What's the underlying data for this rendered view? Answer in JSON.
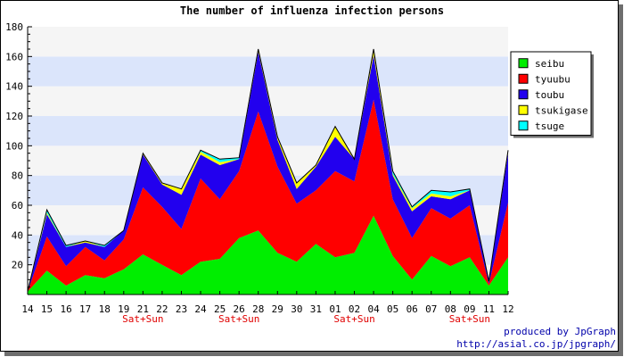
{
  "chart_data": {
    "type": "area",
    "stacked": true,
    "title": "The number of influenza infection persons",
    "categories": [
      "14",
      "15",
      "16",
      "17",
      "18",
      "19",
      "21",
      "22",
      "23",
      "24",
      "25",
      "26",
      "28",
      "29",
      "30",
      "31",
      "01",
      "02",
      "04",
      "05",
      "06",
      "07",
      "08",
      "09",
      "11",
      "12"
    ],
    "weekend_labels": [
      {
        "category": "21",
        "text": "Sat+Sun"
      },
      {
        "category": "26",
        "text": "Sat+Sun"
      },
      {
        "category": "02",
        "text": "Sat+Sun"
      },
      {
        "category": "09",
        "text": "Sat+Sun"
      }
    ],
    "ylim": [
      0,
      180
    ],
    "yticks": [
      20,
      40,
      60,
      80,
      100,
      120,
      140,
      160,
      180
    ],
    "legend_position": "right",
    "series": [
      {
        "name": "seibu",
        "color": "#00ee00",
        "values": [
          2,
          16,
          6,
          13,
          11,
          17,
          27,
          20,
          13,
          22,
          24,
          38,
          43,
          28,
          22,
          34,
          25,
          28,
          53,
          26,
          10,
          26,
          19,
          25,
          6,
          25
        ]
      },
      {
        "name": "tyuubu",
        "color": "#ff0000",
        "values": [
          0,
          23,
          13,
          19,
          12,
          20,
          45,
          39,
          31,
          56,
          40,
          45,
          80,
          58,
          39,
          36,
          58,
          48,
          78,
          38,
          28,
          32,
          32,
          35,
          1,
          37
        ]
      },
      {
        "name": "toubu",
        "color": "#2200ee",
        "values": [
          0,
          15,
          13,
          3,
          9,
          6,
          22,
          15,
          23,
          16,
          23,
          8,
          40,
          18,
          10,
          16,
          23,
          15,
          30,
          16,
          18,
          8,
          13,
          10,
          2,
          33
        ]
      },
      {
        "name": "tsukigase",
        "color": "#ffff00",
        "values": [
          0,
          1,
          0,
          1,
          0,
          0,
          1,
          1,
          4,
          2,
          2,
          0,
          2,
          2,
          4,
          1,
          7,
          0,
          4,
          1,
          2,
          2,
          2,
          0,
          0,
          1
        ]
      },
      {
        "name": "tsuge",
        "color": "#00ffff",
        "values": [
          0,
          2,
          1,
          0,
          1,
          0,
          0,
          0,
          0,
          1,
          2,
          1,
          0,
          0,
          0,
          0,
          0,
          0,
          0,
          2,
          1,
          2,
          3,
          1,
          0,
          1
        ]
      }
    ]
  },
  "credits": {
    "line1": "produced by JpGraph",
    "line2": "http://asial.co.jp/jpgraph/"
  }
}
